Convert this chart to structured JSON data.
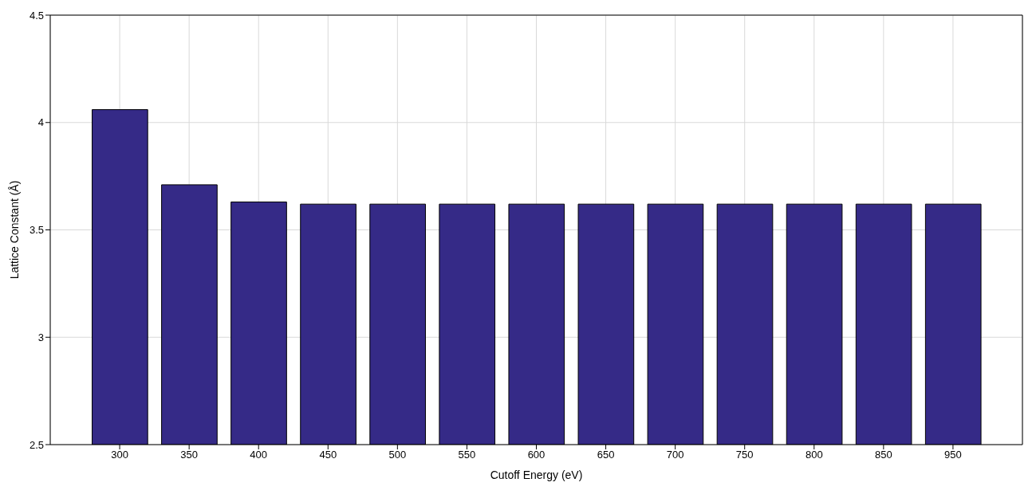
{
  "chart_data": {
    "type": "bar",
    "xlabel": "Cutoff Energy (eV)",
    "ylabel": "Lattice Constant (Å)",
    "categories": [
      "300",
      "350",
      "400",
      "450",
      "500",
      "550",
      "600",
      "650",
      "700",
      "750",
      "800",
      "850",
      "950"
    ],
    "values": [
      4.06,
      3.71,
      3.63,
      3.62,
      3.62,
      3.62,
      3.62,
      3.62,
      3.62,
      3.62,
      3.62,
      3.62,
      3.62
    ],
    "color": "#352a87",
    "ylim": [
      2.5,
      4.5
    ],
    "yticks": [
      2.5,
      3,
      3.5,
      4,
      4.5
    ],
    "grid": true
  }
}
